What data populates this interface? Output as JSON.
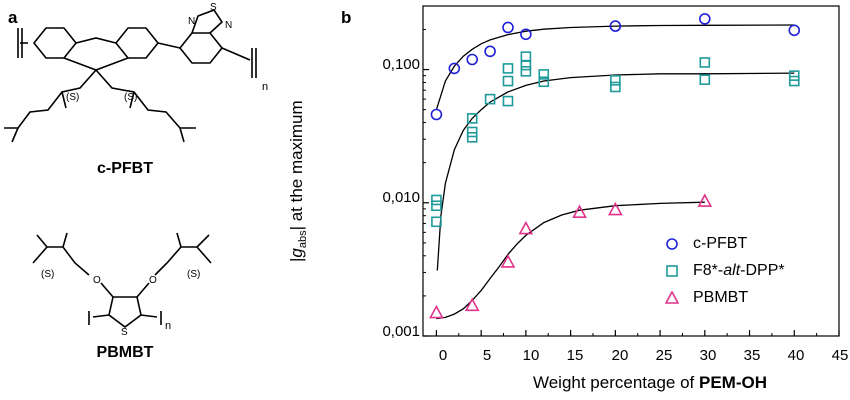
{
  "panel_a": {
    "label": "a",
    "molecule_1": {
      "name": "c-PFBT",
      "stereo_labels": [
        "(S)",
        "(S)"
      ],
      "atom_labels": [
        "S",
        "N",
        "N"
      ],
      "repeat_index": "n"
    },
    "molecule_2": {
      "name": "PBMBT",
      "stereo_labels": [
        "(S)",
        "(S)"
      ],
      "atom_labels": [
        "O",
        "O",
        "S"
      ],
      "repeat_index": "n"
    }
  },
  "panel_b": {
    "label": "b"
  },
  "chart_data": {
    "type": "scatter",
    "ylabel_parts": [
      "|",
      "g",
      "abs",
      "| at the maximum"
    ],
    "xlabel_parts": [
      "Weight percentage of ",
      "PEM-OH"
    ],
    "yscale": "log",
    "ylim": [
      0.001,
      0.3
    ],
    "yticks": [
      0.001,
      0.01,
      0.1
    ],
    "ytick_labels": [
      "0,001",
      "0,010",
      "0,100"
    ],
    "xlim": [
      -1.5,
      45
    ],
    "xticks": [
      0,
      5,
      10,
      15,
      20,
      25,
      30,
      35,
      40,
      45
    ],
    "xtick_labels": [
      "0",
      "5",
      "10",
      "15",
      "20",
      "25",
      "30",
      "35",
      "40",
      "45"
    ],
    "legend_position": "center-right",
    "grid": false,
    "series": [
      {
        "name": "c-PFBT",
        "legend_parts": [
          "c-PFBT"
        ],
        "marker": "circle",
        "color": "#2121d8",
        "x": [
          0,
          2,
          4,
          6,
          8,
          10,
          20,
          30,
          40
        ],
        "y": [
          0.046,
          0.102,
          0.119,
          0.137,
          0.207,
          0.184,
          0.212,
          0.24,
          0.197
        ],
        "fit": {
          "x": [
            0,
            1,
            2,
            3,
            4,
            5,
            6,
            8,
            10,
            12,
            15,
            20,
            25,
            30,
            40
          ],
          "y": [
            0.05,
            0.082,
            0.106,
            0.126,
            0.142,
            0.156,
            0.167,
            0.183,
            0.194,
            0.201,
            0.207,
            0.212,
            0.214,
            0.215,
            0.216
          ]
        }
      },
      {
        "name": "F8*-alt-DPP*",
        "legend_parts": [
          "F8*-",
          "alt",
          "-DPP*"
        ],
        "marker": "square",
        "color": "#1f9a9a",
        "x": [
          0,
          0,
          0,
          4,
          4,
          4,
          6,
          8,
          8,
          8,
          10,
          10,
          10,
          12,
          12,
          20,
          20,
          30,
          30,
          40,
          40
        ],
        "y": [
          0.0105,
          0.0095,
          0.0072,
          0.043,
          0.034,
          0.031,
          0.06,
          0.102,
          0.082,
          0.058,
          0.125,
          0.108,
          0.097,
          0.092,
          0.081,
          0.083,
          0.074,
          0.113,
          0.084,
          0.09,
          0.082
        ],
        "fit": {
          "x": [
            0.1,
            0.5,
            1,
            2,
            3,
            4,
            5,
            6,
            8,
            10,
            12,
            15,
            20,
            25,
            30,
            40
          ],
          "y": [
            0.0031,
            0.008,
            0.014,
            0.025,
            0.035,
            0.043,
            0.05,
            0.057,
            0.068,
            0.076,
            0.082,
            0.087,
            0.091,
            0.093,
            0.093,
            0.094
          ]
        }
      },
      {
        "name": "PBMBT",
        "legend_parts": [
          "PBMBT"
        ],
        "marker": "triangle",
        "color": "#e0338a",
        "x": [
          0,
          4,
          8,
          10,
          16,
          20,
          30
        ],
        "y": [
          0.0015,
          0.0017,
          0.0036,
          0.0064,
          0.0085,
          0.0089,
          0.0103
        ],
        "fit": {
          "x": [
            0,
            1,
            2,
            3,
            4,
            5,
            6,
            7,
            8,
            9,
            10,
            12,
            14,
            16,
            20,
            25,
            30
          ],
          "y": [
            0.00135,
            0.00138,
            0.00146,
            0.0016,
            0.00185,
            0.0022,
            0.0027,
            0.0033,
            0.0041,
            0.0049,
            0.0057,
            0.0071,
            0.0081,
            0.0088,
            0.0095,
            0.0099,
            0.0101
          ]
        }
      }
    ]
  }
}
